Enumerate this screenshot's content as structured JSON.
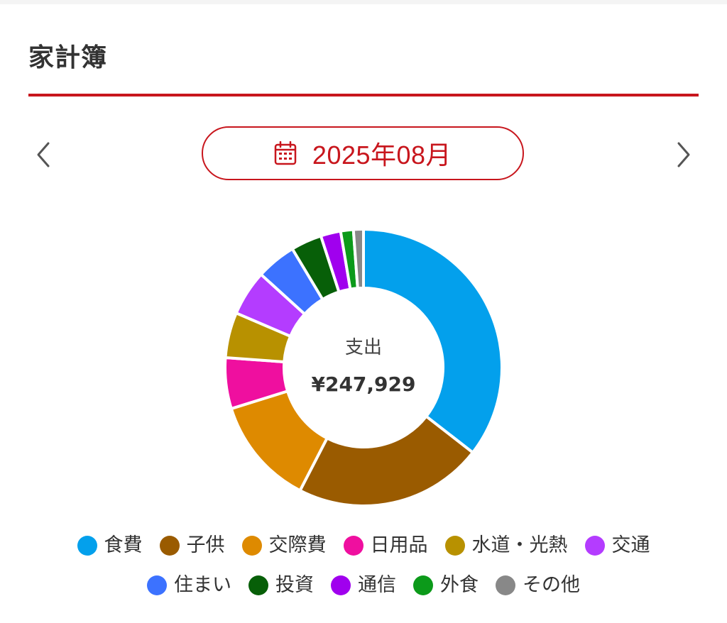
{
  "header": {
    "title": "家計簿"
  },
  "month_selector": {
    "label": "2025年08月",
    "prev_icon": "chevron-left-icon",
    "next_icon": "chevron-right-icon",
    "calendar_icon": "calendar-icon"
  },
  "colors": {
    "accent": "#c8161d"
  },
  "summary": {
    "label": "支出",
    "total": "¥247,929"
  },
  "chart_data": {
    "type": "pie",
    "variant": "donut",
    "categories": [
      "食費",
      "子供",
      "交際費",
      "日用品",
      "水道・光熱",
      "交通",
      "住まい",
      "投資",
      "通信",
      "外食",
      "その他"
    ],
    "values": [
      33.5,
      20.8,
      11.9,
      5.6,
      5.0,
      5.0,
      4.4,
      3.4,
      2.2,
      1.4,
      1.1
    ],
    "colors": [
      "#03a0ec",
      "#9a5b00",
      "#de8a00",
      "#ef0f9f",
      "#b89100",
      "#b43cff",
      "#3c72ff",
      "#075f08",
      "#a000ee",
      "#0c9a1a",
      "#888888"
    ],
    "legend_position": "bottom"
  }
}
